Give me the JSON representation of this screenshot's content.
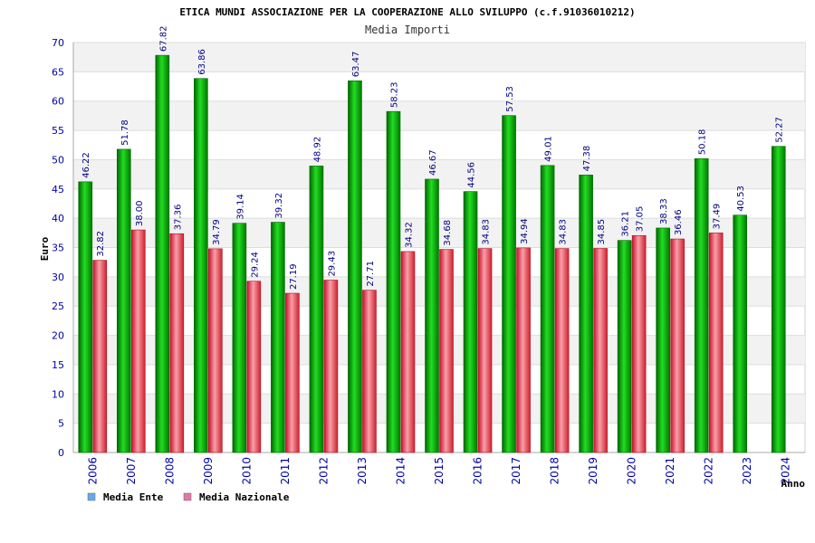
{
  "colors": {
    "ente": "#11bb11",
    "nazionale": "#e84a55",
    "legend_ente": "#66aaee",
    "legend_nazionale": "#e377a8",
    "band": "#f2f2f2",
    "grid": "#dddddd"
  },
  "chart_data": {
    "type": "bar",
    "title": "ETICA MUNDI ASSOCIAZIONE PER LA COOPERAZIONE ALLO SVILUPPO (c.f.91036010212)",
    "subtitle": "Media Importi",
    "xlabel": "Anno",
    "ylabel": "Euro",
    "ylim": [
      0,
      70
    ],
    "yticks": [
      "0",
      "5",
      "10",
      "15",
      "20",
      "25",
      "30",
      "35",
      "40",
      "45",
      "50",
      "55",
      "60",
      "65",
      "70"
    ],
    "grid": true,
    "legend_position": "bottom-left",
    "categories": [
      "2006",
      "2007",
      "2008",
      "2009",
      "2010",
      "2011",
      "2012",
      "2013",
      "2014",
      "2015",
      "2016",
      "2017",
      "2018",
      "2019",
      "2020",
      "2021",
      "2022",
      "2023",
      "2024"
    ],
    "series": [
      {
        "name": "Media Ente",
        "values": [
          46.22,
          51.78,
          67.82,
          63.86,
          39.14,
          39.32,
          48.92,
          63.47,
          58.23,
          46.67,
          44.56,
          57.53,
          49.01,
          47.38,
          36.21,
          38.33,
          50.18,
          40.53,
          52.27
        ],
        "labels": [
          "46.22",
          "51.78",
          "67.82",
          "63.86",
          "39.14",
          "39.32",
          "48.92",
          "63.47",
          "58.23",
          "46.67",
          "44.56",
          "57.53",
          "49.01",
          "47.38",
          "36.21",
          "38.33",
          "50.18",
          "40.53",
          "52.27"
        ]
      },
      {
        "name": "Media Nazionale",
        "values": [
          32.82,
          38.0,
          37.36,
          34.79,
          29.24,
          27.19,
          29.43,
          27.71,
          34.32,
          34.68,
          34.83,
          34.94,
          34.83,
          34.85,
          37.05,
          36.46,
          37.49,
          null,
          null
        ],
        "labels": [
          "32.82",
          "38.00",
          "37.36",
          "34.79",
          "29.24",
          "27.19",
          "29.43",
          "27.71",
          "34.32",
          "34.68",
          "34.83",
          "34.94",
          "34.83",
          "34.85",
          "37.05",
          "36.46",
          "37.49",
          null,
          null
        ]
      }
    ]
  }
}
